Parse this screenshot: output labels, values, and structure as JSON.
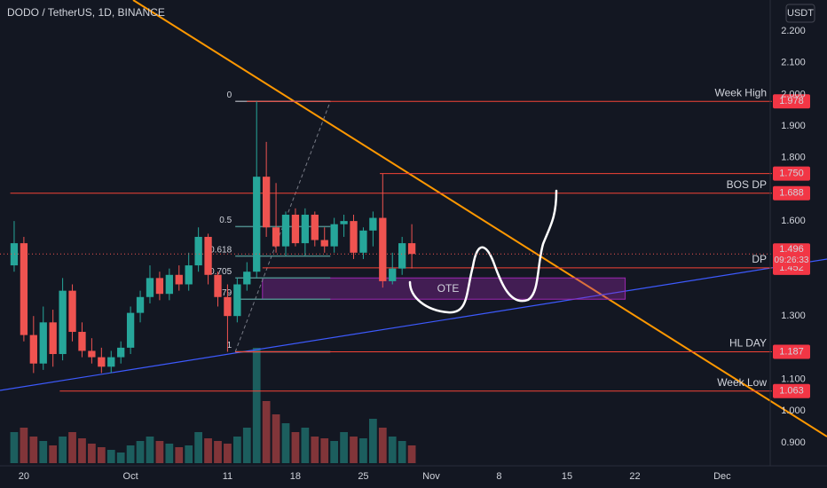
{
  "chart_data": {
    "type": "candlestick",
    "title": "DODO / TetherUS, 1D, BINANCE",
    "currency": "USDT",
    "x": [
      0,
      1,
      2,
      3,
      4,
      5,
      6,
      7,
      8,
      9,
      10,
      11,
      12,
      13,
      14,
      15,
      16,
      17,
      18,
      19,
      20,
      21,
      22,
      23,
      24,
      25,
      26,
      27,
      28,
      29,
      30,
      31,
      32,
      33,
      34,
      35,
      36,
      37,
      38,
      39,
      40,
      41
    ],
    "open": [
      1.46,
      1.53,
      1.24,
      1.15,
      1.28,
      1.18,
      1.38,
      1.25,
      1.19,
      1.17,
      1.14,
      1.17,
      1.2,
      1.31,
      1.36,
      1.42,
      1.37,
      1.43,
      1.4,
      1.46,
      1.55,
      1.43,
      1.36,
      1.3,
      1.4,
      1.44,
      1.74,
      1.58,
      1.52,
      1.62,
      1.53,
      1.62,
      1.54,
      1.52,
      1.59,
      1.6,
      1.5,
      1.57,
      1.61,
      1.41,
      1.45,
      1.53
    ],
    "high": [
      1.6,
      1.55,
      1.3,
      1.33,
      1.32,
      1.42,
      1.4,
      1.28,
      1.23,
      1.2,
      1.19,
      1.22,
      1.33,
      1.38,
      1.46,
      1.44,
      1.45,
      1.46,
      1.5,
      1.58,
      1.56,
      1.44,
      1.4,
      1.42,
      1.47,
      1.978,
      1.85,
      1.72,
      1.63,
      1.64,
      1.64,
      1.63,
      1.58,
      1.61,
      1.62,
      1.62,
      1.58,
      1.63,
      1.75,
      1.5,
      1.55,
      1.59
    ],
    "low": [
      1.44,
      1.22,
      1.12,
      1.13,
      1.14,
      1.16,
      1.22,
      1.17,
      1.15,
      1.12,
      1.12,
      1.15,
      1.18,
      1.28,
      1.34,
      1.35,
      1.35,
      1.38,
      1.38,
      1.44,
      1.4,
      1.33,
      1.187,
      1.28,
      1.38,
      1.42,
      1.55,
      1.5,
      1.49,
      1.52,
      1.49,
      1.52,
      1.5,
      1.5,
      1.55,
      1.48,
      1.48,
      1.52,
      1.39,
      1.4,
      1.43,
      1.45
    ],
    "close": [
      1.53,
      1.24,
      1.15,
      1.28,
      1.18,
      1.38,
      1.25,
      1.19,
      1.17,
      1.14,
      1.17,
      1.2,
      1.31,
      1.36,
      1.42,
      1.37,
      1.43,
      1.4,
      1.46,
      1.55,
      1.43,
      1.36,
      1.3,
      1.4,
      1.44,
      1.74,
      1.58,
      1.52,
      1.62,
      1.53,
      1.62,
      1.54,
      1.52,
      1.59,
      1.6,
      1.5,
      1.57,
      1.61,
      1.41,
      1.45,
      1.53,
      1.496
    ],
    "volume": [
      35,
      40,
      30,
      25,
      20,
      30,
      35,
      28,
      22,
      18,
      15,
      12,
      20,
      25,
      30,
      25,
      22,
      18,
      20,
      35,
      28,
      25,
      22,
      30,
      40,
      130,
      70,
      55,
      45,
      35,
      40,
      30,
      28,
      25,
      35,
      30,
      28,
      50,
      40,
      30,
      25,
      20
    ],
    "up_color": "#26a69a",
    "down_color": "#ef5350",
    "xlim": [
      -1.46,
      77.77
    ],
    "xticks": [
      {
        "value": 1,
        "label": "20"
      },
      {
        "value": 12,
        "label": "Oct"
      },
      {
        "value": 22,
        "label": "11"
      },
      {
        "value": 29,
        "label": "18"
      },
      {
        "value": 36,
        "label": "25"
      },
      {
        "value": 43,
        "label": "Nov"
      },
      {
        "value": 50,
        "label": "8"
      },
      {
        "value": 57,
        "label": "15"
      },
      {
        "value": 64,
        "label": "22"
      },
      {
        "value": 73,
        "label": "Dec"
      }
    ],
    "ylim": [
      0.827,
      2.298
    ],
    "yticks": [
      {
        "value": 2.2,
        "label": "2.200"
      },
      {
        "value": 2.1,
        "label": "2.100"
      },
      {
        "value": 2.0,
        "label": "2.000"
      },
      {
        "value": 1.9,
        "label": "1.900"
      },
      {
        "value": 1.8,
        "label": "1.800"
      },
      {
        "value": 1.6,
        "label": "1.600"
      },
      {
        "value": 1.3,
        "label": "1.300"
      },
      {
        "value": 1.1,
        "label": "1.100"
      },
      {
        "value": 1.0,
        "label": "1.000"
      },
      {
        "value": 0.9,
        "label": "0.900"
      }
    ],
    "grid": true,
    "levels": [
      {
        "name": "Week High",
        "value": 1.978,
        "value_label": "1.978",
        "start": 24
      },
      {
        "value": 1.75,
        "value_label": "1.750",
        "start": 37.7
      },
      {
        "name": "BOS DP",
        "value": 1.688,
        "value_label": "1.688",
        "start": -0.4
      },
      {
        "name": "DP",
        "value": 1.452,
        "value_label": "1.452",
        "start": 25.6
      },
      {
        "name": "HL DAY",
        "value": 1.187,
        "value_label": "1.187",
        "start": 22.8
      },
      {
        "name": "Week Low",
        "value": 1.063,
        "value_label": "1.063",
        "start": 4.7
      }
    ],
    "last_price": {
      "value": 1.496,
      "countdown": "09:26:33"
    },
    "fib": {
      "high": 1.978,
      "low": 1.187,
      "levels": [
        {
          "value": 0,
          "label": "0"
        },
        {
          "value": 0.5,
          "label": "0.5"
        },
        {
          "value": 0.618,
          "label": "0.618"
        },
        {
          "value": 0.705,
          "label": "0.705"
        },
        {
          "value": 0.79,
          "label": "79"
        },
        {
          "value": 1,
          "label": "1"
        }
      ]
    },
    "zone_label": "OTE"
  }
}
